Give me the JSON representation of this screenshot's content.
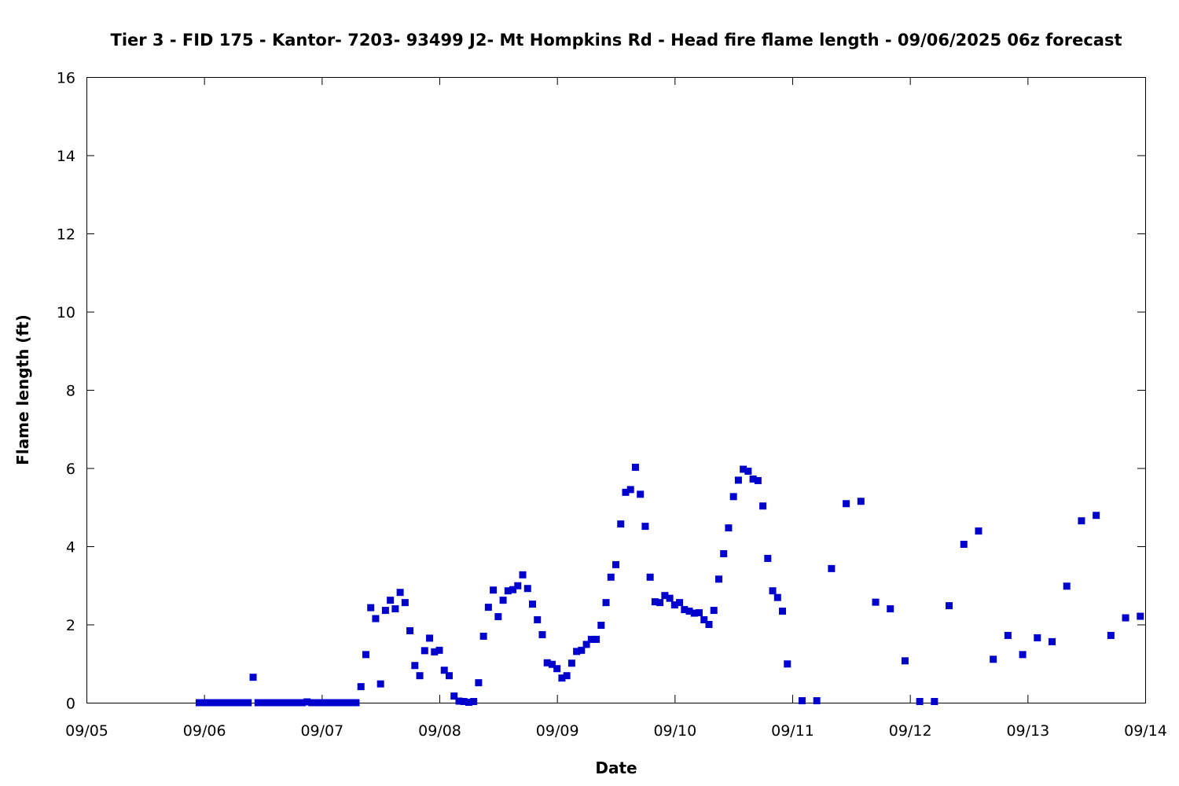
{
  "chart_data": {
    "type": "scatter",
    "title": "Tier 3 - FID 175 - Kantor- 7203- 93499 J2- Mt Hompkins Rd - Head fire flame length - 09/06/2025 06z forecast",
    "xlabel": "Date",
    "ylabel": "Flame length (ft)",
    "x_ticks": [
      "09/05",
      "09/06",
      "09/07",
      "09/08",
      "09/09",
      "09/10",
      "09/11",
      "09/12",
      "09/13",
      "09/14"
    ],
    "xlim": [
      "09/05",
      "09/14"
    ],
    "y_ticks": [
      "0",
      "2",
      "4",
      "6",
      "8",
      "10",
      "12",
      "14",
      "16"
    ],
    "ylim": [
      0,
      16
    ],
    "grid": false,
    "marker": "square",
    "color": "#0000cc",
    "series": [
      {
        "points": [
          [
            "09/05 23:00",
            0
          ],
          [
            "09/06 00:00",
            0
          ],
          [
            "09/06 01:00",
            0
          ],
          [
            "09/06 02:00",
            0
          ],
          [
            "09/06 03:00",
            0
          ],
          [
            "09/06 04:00",
            0
          ],
          [
            "09/06 05:00",
            0
          ],
          [
            "09/06 06:00",
            0
          ],
          [
            "09/06 07:00",
            0
          ],
          [
            "09/06 08:00",
            0
          ],
          [
            "09/06 09:00",
            0
          ],
          [
            "09/06 10:00",
            0.65
          ],
          [
            "09/06 11:00",
            0
          ],
          [
            "09/06 12:00",
            0
          ],
          [
            "09/06 13:00",
            0
          ],
          [
            "09/06 14:00",
            0
          ],
          [
            "09/06 15:00",
            0
          ],
          [
            "09/06 16:00",
            0
          ],
          [
            "09/06 17:00",
            0
          ],
          [
            "09/06 18:00",
            0
          ],
          [
            "09/06 19:00",
            0
          ],
          [
            "09/06 20:00",
            0
          ],
          [
            "09/06 21:00",
            0.02
          ],
          [
            "09/06 22:00",
            0
          ],
          [
            "09/06 23:00",
            0
          ],
          [
            "09/07 00:00",
            0
          ],
          [
            "09/07 01:00",
            0
          ],
          [
            "09/07 02:00",
            0
          ],
          [
            "09/07 03:00",
            0
          ],
          [
            "09/07 04:00",
            0
          ],
          [
            "09/07 05:00",
            0
          ],
          [
            "09/07 06:00",
            0
          ],
          [
            "09/07 07:00",
            0
          ],
          [
            "09/07 08:00",
            0.41
          ],
          [
            "09/07 09:00",
            1.23
          ],
          [
            "09/07 10:00",
            2.43
          ],
          [
            "09/07 11:00",
            2.15
          ],
          [
            "09/07 12:00",
            0.48
          ],
          [
            "09/07 13:00",
            2.36
          ],
          [
            "09/07 14:00",
            2.62
          ],
          [
            "09/07 15:00",
            2.4
          ],
          [
            "09/07 16:00",
            2.82
          ],
          [
            "09/07 17:00",
            2.56
          ],
          [
            "09/07 18:00",
            1.84
          ],
          [
            "09/07 19:00",
            0.95
          ],
          [
            "09/07 20:00",
            0.69
          ],
          [
            "09/07 21:00",
            1.33
          ],
          [
            "09/07 22:00",
            1.65
          ],
          [
            "09/07 23:00",
            1.3
          ],
          [
            "09/08 00:00",
            1.34
          ],
          [
            "09/08 01:00",
            0.83
          ],
          [
            "09/08 02:00",
            0.69
          ],
          [
            "09/08 03:00",
            0.17
          ],
          [
            "09/08 04:00",
            0.04
          ],
          [
            "09/08 05:00",
            0.03
          ],
          [
            "09/08 06:00",
            0.01
          ],
          [
            "09/08 07:00",
            0.03
          ],
          [
            "09/08 08:00",
            0.51
          ],
          [
            "09/08 09:00",
            1.7
          ],
          [
            "09/08 10:00",
            2.44
          ],
          [
            "09/08 11:00",
            2.88
          ],
          [
            "09/08 12:00",
            2.2
          ],
          [
            "09/08 13:00",
            2.62
          ],
          [
            "09/08 14:00",
            2.86
          ],
          [
            "09/08 15:00",
            2.89
          ],
          [
            "09/08 16:00",
            2.99
          ],
          [
            "09/08 17:00",
            3.27
          ],
          [
            "09/08 18:00",
            2.92
          ],
          [
            "09/08 19:00",
            2.52
          ],
          [
            "09/08 20:00",
            2.12
          ],
          [
            "09/08 21:00",
            1.74
          ],
          [
            "09/08 22:00",
            1.02
          ],
          [
            "09/08 23:00",
            0.98
          ],
          [
            "09/09 00:00",
            0.87
          ],
          [
            "09/09 01:00",
            0.63
          ],
          [
            "09/09 02:00",
            0.69
          ],
          [
            "09/09 03:00",
            1.01
          ],
          [
            "09/09 04:00",
            1.31
          ],
          [
            "09/09 05:00",
            1.34
          ],
          [
            "09/09 06:00",
            1.49
          ],
          [
            "09/09 07:00",
            1.62
          ],
          [
            "09/09 08:00",
            1.62
          ],
          [
            "09/09 09:00",
            1.98
          ],
          [
            "09/09 10:00",
            2.56
          ],
          [
            "09/09 11:00",
            3.21
          ],
          [
            "09/09 12:00",
            3.53
          ],
          [
            "09/09 13:00",
            4.57
          ],
          [
            "09/09 14:00",
            5.38
          ],
          [
            "09/09 15:00",
            5.45
          ],
          [
            "09/09 16:00",
            6.02
          ],
          [
            "09/09 17:00",
            5.33
          ],
          [
            "09/09 18:00",
            4.51
          ],
          [
            "09/09 19:00",
            3.21
          ],
          [
            "09/09 20:00",
            2.58
          ],
          [
            "09/09 21:00",
            2.56
          ],
          [
            "09/09 22:00",
            2.74
          ],
          [
            "09/09 23:00",
            2.67
          ],
          [
            "09/10 00:00",
            2.5
          ],
          [
            "09/10 01:00",
            2.56
          ],
          [
            "09/10 02:00",
            2.38
          ],
          [
            "09/10 03:00",
            2.34
          ],
          [
            "09/10 04:00",
            2.29
          ],
          [
            "09/10 05:00",
            2.3
          ],
          [
            "09/10 06:00",
            2.12
          ],
          [
            "09/10 07:00",
            2.0
          ],
          [
            "09/10 08:00",
            2.36
          ],
          [
            "09/10 09:00",
            3.16
          ],
          [
            "09/10 10:00",
            3.81
          ],
          [
            "09/10 11:00",
            4.47
          ],
          [
            "09/10 12:00",
            5.27
          ],
          [
            "09/10 13:00",
            5.69
          ],
          [
            "09/10 14:00",
            5.97
          ],
          [
            "09/10 15:00",
            5.92
          ],
          [
            "09/10 16:00",
            5.72
          ],
          [
            "09/10 17:00",
            5.68
          ],
          [
            "09/10 18:00",
            5.03
          ],
          [
            "09/10 19:00",
            3.69
          ],
          [
            "09/10 20:00",
            2.86
          ],
          [
            "09/10 21:00",
            2.69
          ],
          [
            "09/10 22:00",
            2.34
          ],
          [
            "09/10 23:00",
            0.99
          ],
          [
            "09/11 02:00",
            0.05
          ],
          [
            "09/11 05:00",
            0.05
          ],
          [
            "09/11 08:00",
            3.43
          ],
          [
            "09/11 11:00",
            5.09
          ],
          [
            "09/11 14:00",
            5.15
          ],
          [
            "09/11 17:00",
            2.57
          ],
          [
            "09/11 20:00",
            2.4
          ],
          [
            "09/11 23:00",
            1.07
          ],
          [
            "09/12 02:00",
            0.03
          ],
          [
            "09/12 05:00",
            0.03
          ],
          [
            "09/12 08:00",
            2.48
          ],
          [
            "09/12 11:00",
            4.05
          ],
          [
            "09/12 14:00",
            4.39
          ],
          [
            "09/12 17:00",
            1.11
          ],
          [
            "09/12 20:00",
            1.72
          ],
          [
            "09/12 23:00",
            1.23
          ],
          [
            "09/13 02:00",
            1.66
          ],
          [
            "09/13 05:00",
            1.56
          ],
          [
            "09/13 08:00",
            2.98
          ],
          [
            "09/13 11:00",
            4.65
          ],
          [
            "09/13 14:00",
            4.79
          ],
          [
            "09/13 17:00",
            1.72
          ],
          [
            "09/13 20:00",
            2.17
          ],
          [
            "09/13 23:00",
            2.21
          ]
        ]
      }
    ]
  }
}
